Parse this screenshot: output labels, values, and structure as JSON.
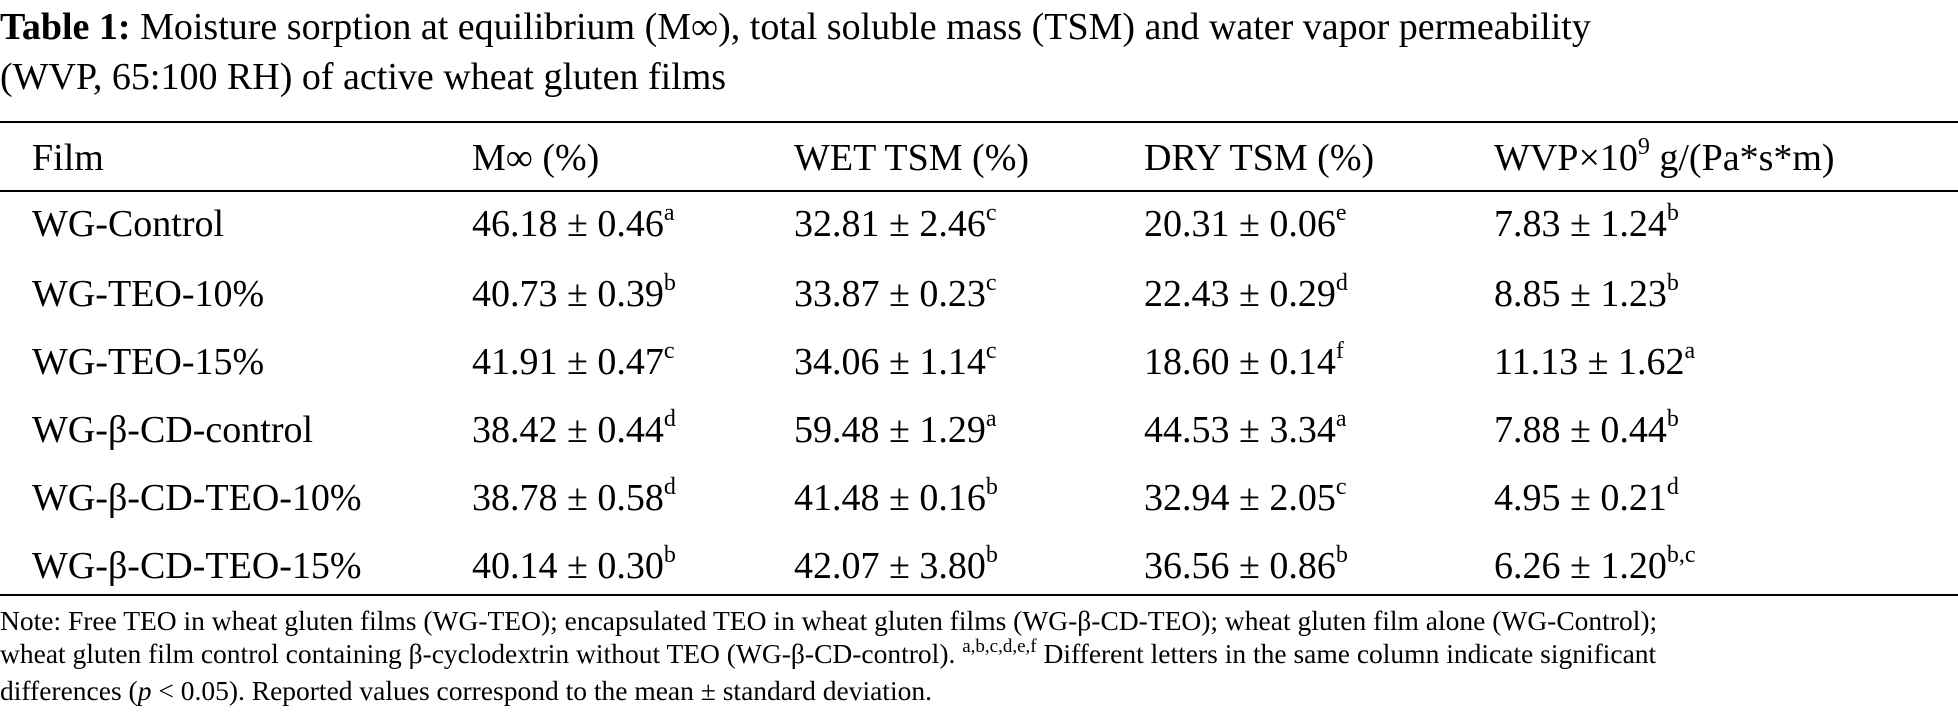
{
  "caption": {
    "label": "Table 1:",
    "text_line1": "Moisture sorption at equilibrium (M∞), total soluble mass (TSM) and water vapor permeability",
    "text_line2": "(WVP, 65:100 RH) of active wheat gluten films"
  },
  "table": {
    "headers": {
      "film": "Film",
      "m_inf": "M∞ (%)",
      "wet_tsm": "WET TSM (%)",
      "dry_tsm": "DRY TSM (%)",
      "wvp_prefix": "WVP×10",
      "wvp_exp": "9",
      "wvp_suffix": " g/(Pa*s*m)"
    },
    "rows": [
      {
        "film": "WG-Control",
        "m_inf": {
          "value": "46.18 ± 0.46",
          "sup": "a"
        },
        "wet_tsm": {
          "value": "32.81 ± 2.46",
          "sup": "c"
        },
        "dry_tsm": {
          "value": "20.31 ± 0.06",
          "sup": "e"
        },
        "wvp": {
          "value": "7.83 ± 1.24",
          "sup": "b"
        }
      },
      {
        "film": "WG-TEO-10%",
        "m_inf": {
          "value": "40.73 ± 0.39",
          "sup": "b"
        },
        "wet_tsm": {
          "value": "33.87 ± 0.23",
          "sup": "c"
        },
        "dry_tsm": {
          "value": "22.43 ± 0.29",
          "sup": "d"
        },
        "wvp": {
          "value": "8.85 ± 1.23",
          "sup": "b"
        }
      },
      {
        "film": "WG-TEO-15%",
        "m_inf": {
          "value": "41.91 ± 0.47",
          "sup": "c"
        },
        "wet_tsm": {
          "value": "34.06 ± 1.14",
          "sup": "c"
        },
        "dry_tsm": {
          "value": "18.60 ± 0.14",
          "sup": "f"
        },
        "wvp": {
          "value": "11.13 ± 1.62",
          "sup": "a"
        }
      },
      {
        "film": "WG-β-CD-control",
        "m_inf": {
          "value": "38.42 ± 0.44",
          "sup": "d"
        },
        "wet_tsm": {
          "value": "59.48 ± 1.29",
          "sup": "a"
        },
        "dry_tsm": {
          "value": "44.53 ± 3.34",
          "sup": "a"
        },
        "wvp": {
          "value": "7.88 ± 0.44",
          "sup": "b"
        }
      },
      {
        "film": "WG-β-CD-TEO-10%",
        "m_inf": {
          "value": "38.78 ± 0.58",
          "sup": "d"
        },
        "wet_tsm": {
          "value": "41.48 ± 0.16",
          "sup": "b"
        },
        "dry_tsm": {
          "value": "32.94 ± 2.05",
          "sup": "c"
        },
        "wvp": {
          "value": "4.95 ± 0.21",
          "sup": "d"
        }
      },
      {
        "film": "WG-β-CD-TEO-15%",
        "m_inf": {
          "value": "40.14 ± 0.30",
          "sup": "b"
        },
        "wet_tsm": {
          "value": "42.07 ± 3.80",
          "sup": "b"
        },
        "dry_tsm": {
          "value": "36.56 ± 0.86",
          "sup": "b"
        },
        "wvp": {
          "value": "6.26 ± 1.20",
          "sup": "b,c"
        }
      }
    ]
  },
  "note": {
    "part1": "Note: Free TEO in wheat gluten films (WG-TEO); encapsulated TEO in wheat gluten films (WG-β-CD-TEO); wheat gluten film alone (WG-Control);",
    "part2": "wheat gluten film control containing β-cyclodextrin without TEO (WG-β-CD-control).",
    "letters": "a,b,c,d,e,f",
    "part3": " Different letters in the same column indicate significant",
    "part4": "differences (",
    "p_symbol": "p",
    "part5": " < 0.05). Reported values correspond to the mean ± standard deviation."
  }
}
